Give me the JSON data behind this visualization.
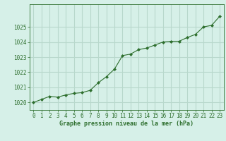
{
  "x": [
    0,
    1,
    2,
    3,
    4,
    5,
    6,
    7,
    8,
    9,
    10,
    11,
    12,
    13,
    14,
    15,
    16,
    17,
    18,
    19,
    20,
    21,
    22,
    23
  ],
  "y": [
    1020.0,
    1020.2,
    1020.4,
    1020.35,
    1020.5,
    1020.6,
    1020.65,
    1020.8,
    1021.3,
    1021.7,
    1022.2,
    1023.1,
    1023.2,
    1023.5,
    1023.6,
    1023.8,
    1024.0,
    1024.05,
    1024.05,
    1024.3,
    1024.5,
    1025.0,
    1025.1,
    1025.7
  ],
  "line_color": "#2d6e2d",
  "marker_color": "#2d6e2d",
  "bg_color": "#d6f0e8",
  "grid_color": "#b8d8cc",
  "xlabel": "Graphe pression niveau de la mer (hPa)",
  "xlabel_color": "#2d6e2d",
  "tick_color": "#2d6e2d",
  "ylim_min": 1019.5,
  "ylim_max": 1026.5,
  "yticks": [
    1020,
    1021,
    1022,
    1023,
    1024,
    1025
  ],
  "xticks": [
    0,
    1,
    2,
    3,
    4,
    5,
    6,
    7,
    8,
    9,
    10,
    11,
    12,
    13,
    14,
    15,
    16,
    17,
    18,
    19,
    20,
    21,
    22,
    23
  ],
  "xtick_labels": [
    "0",
    "1",
    "2",
    "3",
    "4",
    "5",
    "6",
    "7",
    "8",
    "9",
    "10",
    "11",
    "12",
    "13",
    "14",
    "15",
    "16",
    "17",
    "18",
    "19",
    "20",
    "21",
    "22",
    "23"
  ]
}
